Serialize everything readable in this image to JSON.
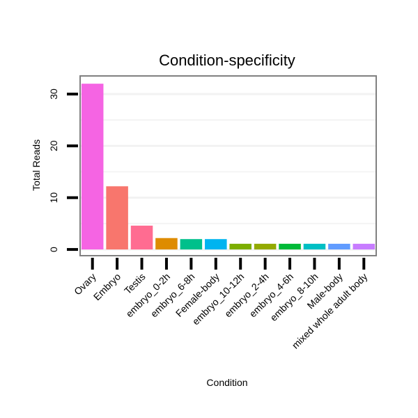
{
  "chart_data": {
    "type": "bar",
    "title": "Condition-specificity",
    "xlabel": "Condition",
    "ylabel": "Total Reads",
    "ylim": [
      -1.2,
      33.5
    ],
    "yticks": [
      0,
      10,
      20,
      30
    ],
    "grid": true,
    "legend": "none",
    "categories": [
      "Ovary",
      "Embryo",
      "Testis",
      "embryo_0-2h",
      "embryo_6-8h",
      "Female-body",
      "embryo_10-12h",
      "embryo_2-4h",
      "embryo_4-6h",
      "embryo_8-10h",
      "Male-body",
      "mixed whole adult body"
    ],
    "values": [
      32,
      12.2,
      4.6,
      2.2,
      2,
      2,
      1.1,
      1.1,
      1.1,
      1.1,
      1.1,
      1.1
    ],
    "colors": [
      "#F564E3",
      "#F8766D",
      "#FF6C91",
      "#DE8C00",
      "#00C08B",
      "#00B4F0",
      "#7CAE00",
      "#93AA00",
      "#00BA38",
      "#00BFC4",
      "#619CFF",
      "#C77CFF"
    ]
  }
}
